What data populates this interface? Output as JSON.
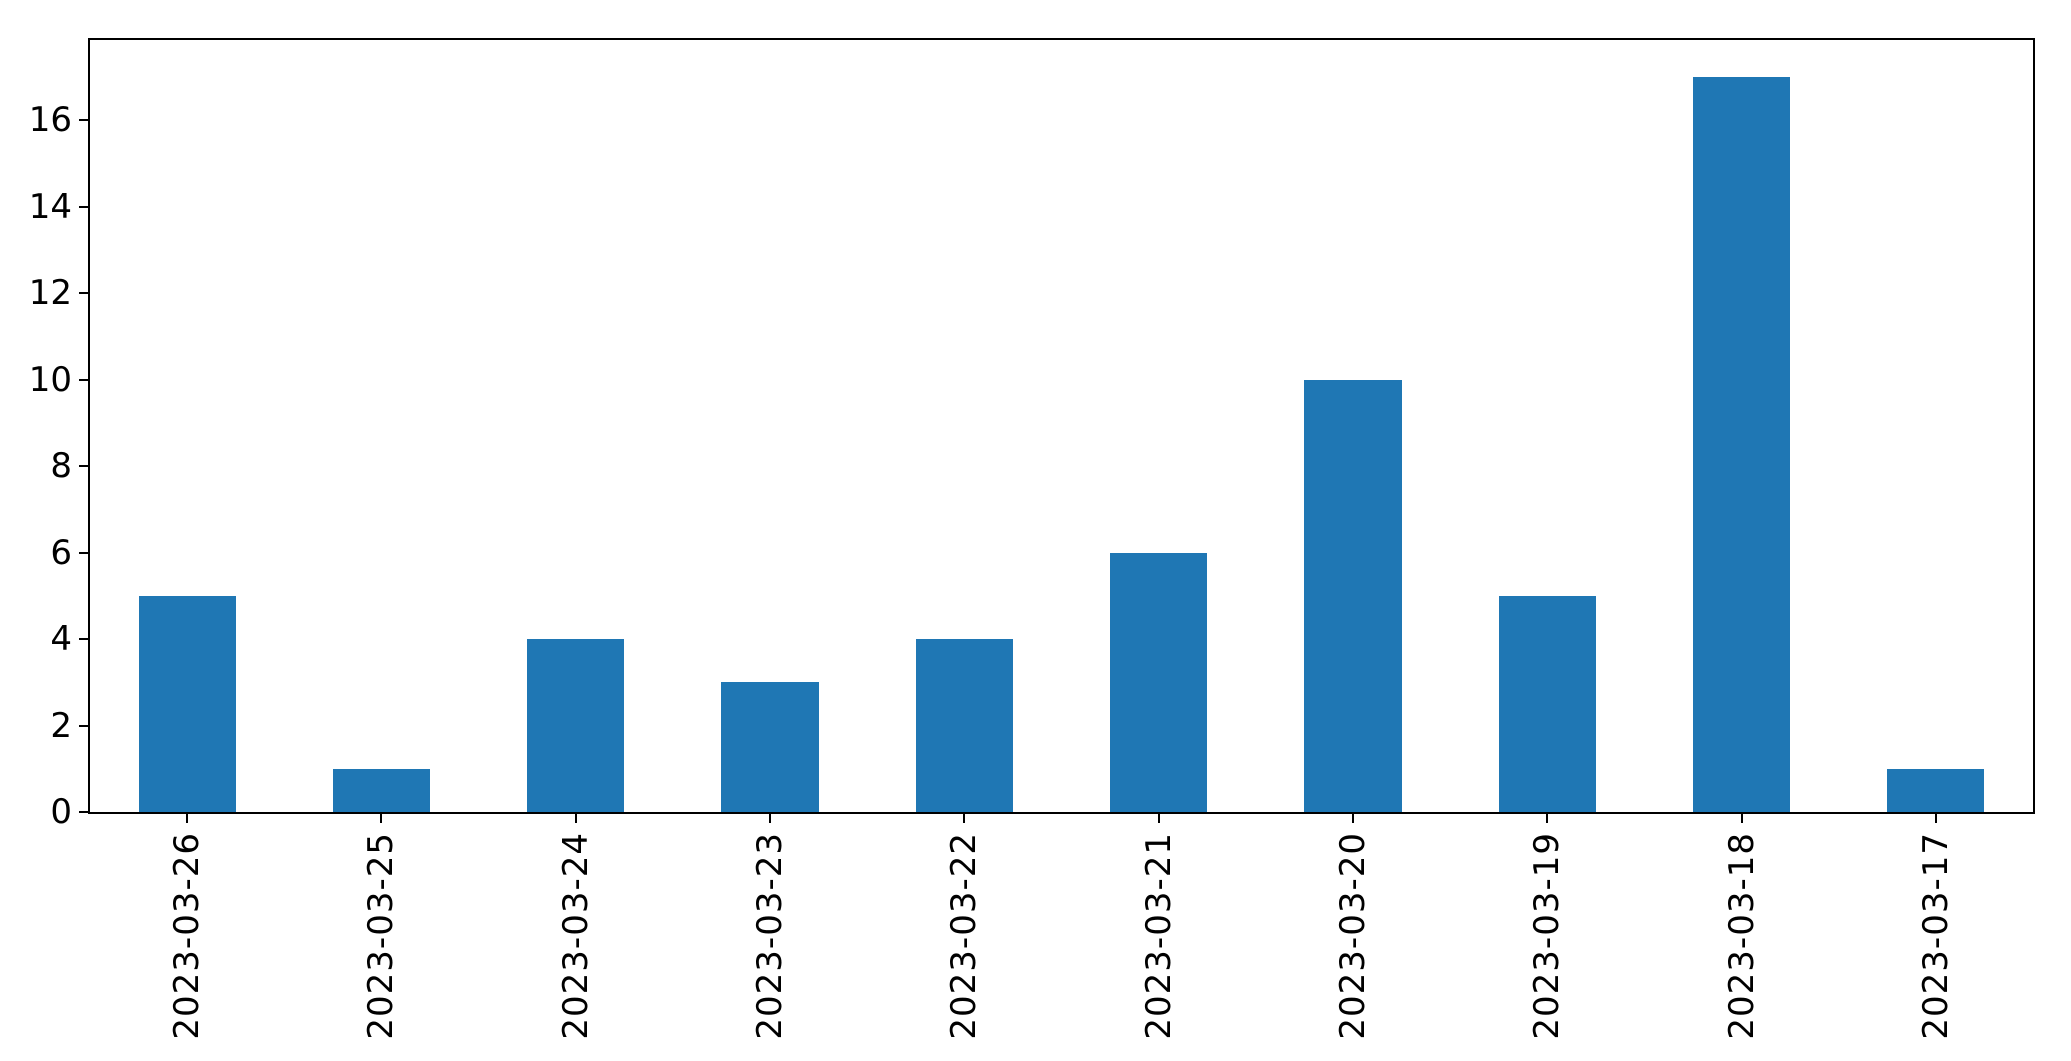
{
  "figure": {
    "background": "#ffffff",
    "spine_color": "#000000"
  },
  "chart_data": {
    "type": "bar",
    "title": "",
    "xlabel": "",
    "ylabel": "",
    "categories": [
      "2023-03-26",
      "2023-03-25",
      "2023-03-24",
      "2023-03-23",
      "2023-03-22",
      "2023-03-21",
      "2023-03-20",
      "2023-03-19",
      "2023-03-18",
      "2023-03-17"
    ],
    "values": [
      5,
      1,
      4,
      3,
      4,
      6,
      10,
      5,
      17,
      1
    ],
    "yticks": [
      "0",
      "2",
      "4",
      "6",
      "8",
      "10",
      "12",
      "14",
      "16"
    ],
    "ylim": [
      0,
      17.85
    ],
    "bar_color": "#1f77b4",
    "bar_width_fraction": 0.5,
    "x_tick_rotation_deg": 90,
    "grid": false,
    "legend_position": "none"
  }
}
